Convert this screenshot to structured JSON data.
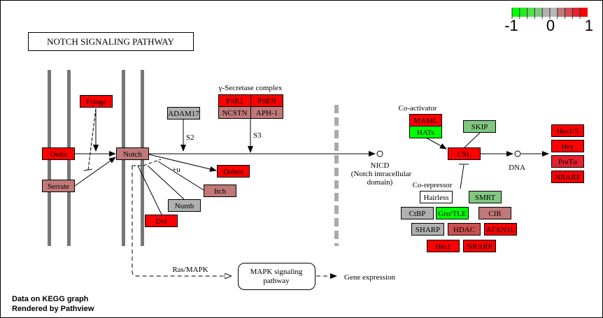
{
  "title": "NOTCH SIGNALING PATHWAY",
  "legend": {
    "min_label": "-1",
    "mid_label": "0",
    "max_label": "1",
    "colors": [
      "#00ff00",
      "#22ee22",
      "#55dd55",
      "#80c880",
      "#b0b0b0",
      "#b8b8b8",
      "#c07878",
      "#d05050",
      "#e52030",
      "#ff0000"
    ]
  },
  "labels": {
    "gamma_secretase": "γ-Secretase complex",
    "s2": "S2",
    "s3": "S3",
    "plus_u": "+u",
    "nicd": "NICD",
    "nicd_sub1": "(Notch intracellular",
    "nicd_sub2": "domain)",
    "co_activator": "Co-activator",
    "co_repressor": "Co-repressor",
    "dna": "DNA",
    "ras_mapk": "Ras/MAPK",
    "mapk_line1": "MAPK signaling",
    "mapk_line2": "pathway",
    "gene_expression": "Gene expression"
  },
  "footer": {
    "line1": "Data on KEGG graph",
    "line2": "Rendered by Pathview"
  },
  "genes": [
    {
      "label": "Fringe",
      "color": "#ff0000"
    },
    {
      "label": "Delta",
      "color": "#ff0000"
    },
    {
      "label": "Serrate",
      "color": "#c07878"
    },
    {
      "label": "Notch",
      "color": "#c07878"
    },
    {
      "label": "ADAM17",
      "color": "#b0b0b0"
    },
    {
      "label": "PSE2",
      "color": "#ff0000"
    },
    {
      "label": "PSEN",
      "color": "#ff0000"
    },
    {
      "label": "NCSTN",
      "color": "#c07878"
    },
    {
      "label": "APH-1",
      "color": "#c07878"
    },
    {
      "label": "Deltex",
      "color": "#ff0000"
    },
    {
      "label": "Itch",
      "color": "#c07878"
    },
    {
      "label": "Numb",
      "color": "#b0b0b0"
    },
    {
      "label": "Dvl",
      "color": "#ff0000"
    },
    {
      "label": "MAML",
      "color": "#ff0000"
    },
    {
      "label": "HATs",
      "color": "#00ff00"
    },
    {
      "label": "SKIP",
      "color": "#80c880"
    },
    {
      "label": "CSL",
      "color": "#ff0000"
    },
    {
      "label": "Hes1/5",
      "color": "#ff0000"
    },
    {
      "label": "Hey",
      "color": "#ff0000"
    },
    {
      "label": "PreTα",
      "color": "#e52030"
    },
    {
      "label": "NRARP",
      "color": "#ff0000"
    },
    {
      "label": "Hairless",
      "color": "#ffffff"
    },
    {
      "label": "SMRT",
      "color": "#80c880"
    },
    {
      "label": "CtBP",
      "color": "#b0b0b0"
    },
    {
      "label": "Gro/TLE",
      "color": "#00ff00"
    },
    {
      "label": "CIR",
      "color": "#c07878"
    },
    {
      "label": "SHARP",
      "color": "#b0b0b0"
    },
    {
      "label": "HDAC",
      "color": "#d05050"
    },
    {
      "label": "ATXN1L",
      "color": "#ff0000"
    },
    {
      "label": "Hes1",
      "color": "#ff0000"
    },
    {
      "label": "NRARP",
      "color": "#ff0000"
    }
  ]
}
